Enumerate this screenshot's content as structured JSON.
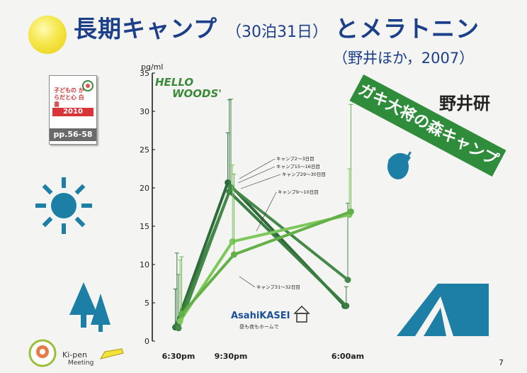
{
  "title": {
    "main": "長期キャンプ",
    "paren": "（30泊31日）",
    "rest": "とメラトニン",
    "citation": "（野井ほか，2007）"
  },
  "book": {
    "title": "子どもの からだと心 白書",
    "year": "2010",
    "pages": "pp.56-58"
  },
  "banner": "ガキ大将の森キャンプ",
  "logos": {
    "hello": "HELLO",
    "woods": "WOODS'",
    "asahi": "AsahiKASEI",
    "asahi_sub": "昼も夜もホームで",
    "nojii": "野井研",
    "kipen": "Ki-pen",
    "kipen_meeting": "Meeting"
  },
  "slide_number": "7",
  "colors": {
    "title": "#1c3f8a",
    "icon_blue": "#1d7fa6",
    "dark_green": "#2f6b3a",
    "mid_green": "#3f9a47",
    "light_green": "#7cc85a",
    "banner": "#2f8c3a"
  },
  "icons": [
    "sun-icon",
    "acorn-icon",
    "tree-icon",
    "tent-icon"
  ],
  "chart_data": {
    "type": "line",
    "ylabel": "pg/ml",
    "ylim": [
      0,
      35
    ],
    "yticks": [
      "0",
      "5",
      "10",
      "15",
      "20",
      "25",
      "30",
      "35"
    ],
    "categories": [
      "6:30pm",
      "9:30pm",
      "6:00am"
    ],
    "annotations": [
      "キャンプ2～3日目",
      "キャンプ15～16日目",
      "キャンプ29～30日目",
      "キャンプ9～10日目",
      "キャンプ31～32日目"
    ],
    "series": [
      {
        "name": "キャンプ2～3日目",
        "values": [
          1.8,
          20.7,
          4.6
        ],
        "err_up": [
          5.0,
          6.5,
          0
        ],
        "color": "#2f6b3a"
      },
      {
        "name": "キャンプ15～16日目",
        "values": [
          2.0,
          19.5,
          4.6
        ],
        "err_up": [
          9.5,
          12.0,
          2.5
        ],
        "color": "#3a7d40"
      },
      {
        "name": "キャンプ29～30日目",
        "values": [
          1.7,
          20.1,
          8.0
        ],
        "err_up": [
          7.0,
          11.5,
          10.0
        ],
        "color": "#45894a"
      },
      {
        "name": "キャンプ9～10日目",
        "values": [
          2.6,
          13.0,
          16.5
        ],
        "err_up": [
          8.0,
          10.0,
          6.0
        ],
        "color": "#7cc85a"
      },
      {
        "name": "キャンプ31～32日目",
        "values": [
          3.5,
          11.3,
          16.9
        ],
        "err_up": [
          7.5,
          10.5,
          14.0
        ],
        "color": "#64b048"
      }
    ]
  }
}
